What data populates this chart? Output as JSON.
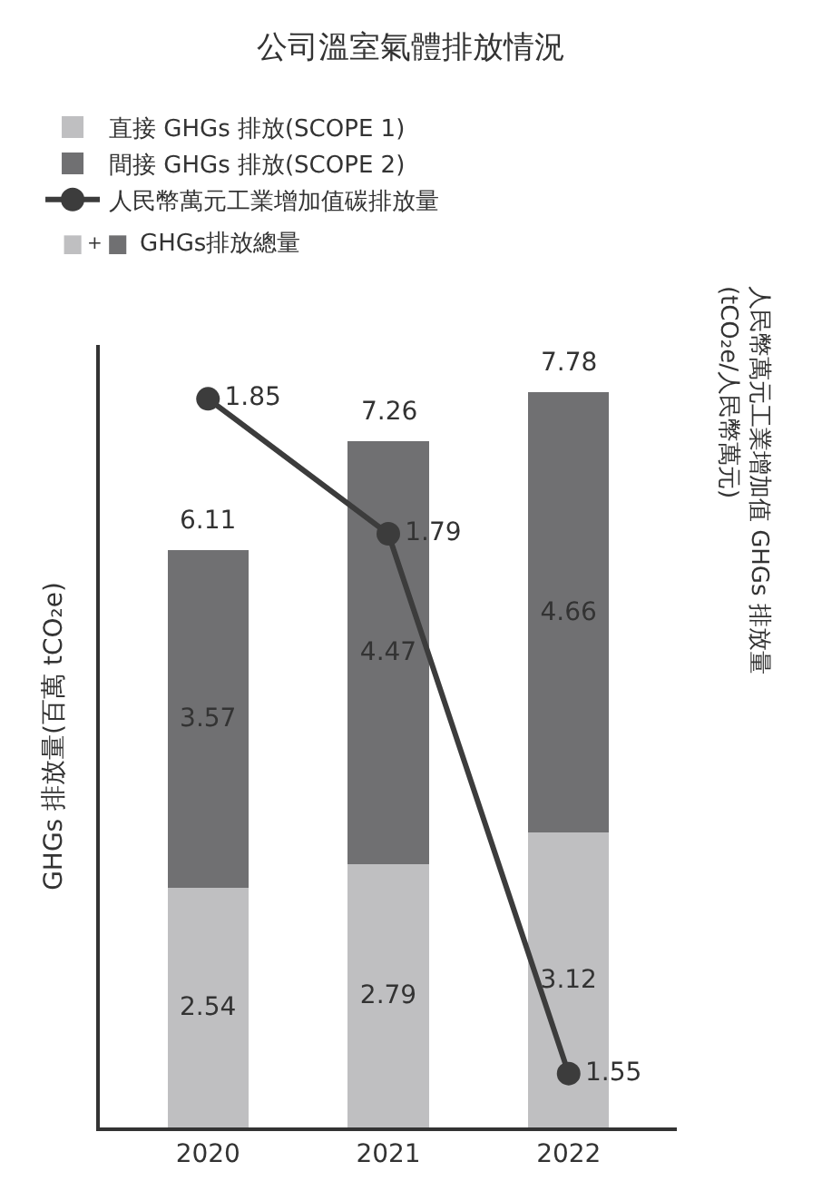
{
  "chart_data": {
    "type": "bar",
    "title": "公司溫室氣體排放情況",
    "categories": [
      "2020",
      "2021",
      "2022"
    ],
    "series": [
      {
        "name": "直接 GHGs 排放(SCOPE 1)",
        "color": "#bfbfc1",
        "values": [
          2.54,
          2.79,
          3.12
        ]
      },
      {
        "name": "間接 GHGs 排放(SCOPE 2)",
        "color": "#707072",
        "values": [
          3.57,
          4.47,
          4.66
        ]
      },
      {
        "name": "人民幣萬元工業增加值碳排放量",
        "type": "line",
        "axis": "y2",
        "color": "#3c3c3c",
        "values": [
          1.85,
          1.79,
          1.55
        ]
      }
    ],
    "stacked": true,
    "totals": [
      "6.11",
      "7.26",
      "7.78"
    ],
    "data_labels": true,
    "marker": "circle",
    "line_style": "solid",
    "legend": "top left",
    "annotations": [
      "+",
      "GHGs排放總量"
    ],
    "ylabel": "GHGs 排放量(百萬 tCO₂e)",
    "y2label": "人民幣萬元工業增加值 GHGs 排放量\n(tCO₂e/人民幣萬元)"
  }
}
